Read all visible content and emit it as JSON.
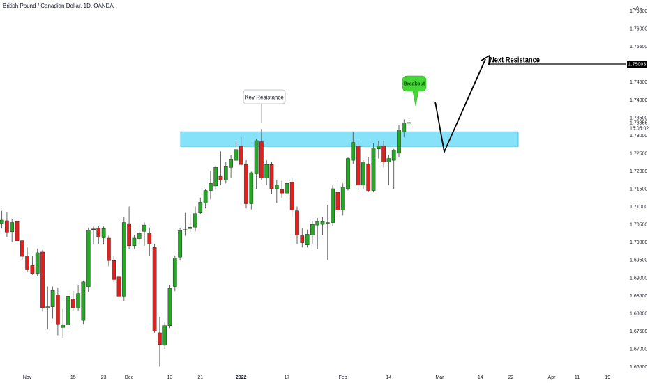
{
  "header": {
    "title": "British Pound / Canadian Dollar, 1D, OANDA"
  },
  "chart_data": {
    "type": "candlestick",
    "currency": "CAD",
    "ylim": [
      1.6625,
      1.77
    ],
    "y_ticks": [
      "1.76500",
      "1.76000",
      "1.75500",
      "1.74500",
      "1.74000",
      "1.73500",
      "1.73000",
      "1.72500",
      "1.72000",
      "1.71500",
      "1.71000",
      "1.70500",
      "1.70000",
      "1.69500",
      "1.69000",
      "1.68500",
      "1.68000",
      "1.67500",
      "1.67000",
      "1.66500"
    ],
    "x_ticks": [
      {
        "label": "Nov",
        "i": 5
      },
      {
        "label": "15",
        "i": 14
      },
      {
        "label": "23",
        "i": 20
      },
      {
        "label": "Dec",
        "i": 25
      },
      {
        "label": "13",
        "i": 33
      },
      {
        "label": "21",
        "i": 39
      },
      {
        "label": "2022",
        "i": 47
      },
      {
        "label": "17",
        "i": 56
      },
      {
        "label": "Feb",
        "i": 67
      },
      {
        "label": "14",
        "i": 76
      },
      {
        "label": "Mar",
        "i": 86
      },
      {
        "label": "14",
        "i": 94
      },
      {
        "label": "22",
        "i": 100
      },
      {
        "label": "Apr",
        "i": 108
      },
      {
        "label": "11",
        "i": 113
      },
      {
        "label": "19",
        "i": 119
      }
    ],
    "x_tick_labels_bold": [
      "2022"
    ],
    "candles": [
      [
        1.7053,
        1.7088,
        1.7038,
        1.7062
      ],
      [
        1.706,
        1.7085,
        1.7015,
        1.7028
      ],
      [
        1.7029,
        1.7065,
        1.7,
        1.7055
      ],
      [
        1.7058,
        1.7066,
        1.6998,
        1.7004
      ],
      [
        1.7004,
        1.7007,
        1.695,
        1.696
      ],
      [
        1.6961,
        1.6985,
        1.6915,
        1.6922
      ],
      [
        1.6934,
        1.696,
        1.6908,
        1.6912
      ],
      [
        1.6912,
        1.6982,
        1.6905,
        1.697
      ],
      [
        1.6972,
        1.6978,
        1.6805,
        1.6815
      ],
      [
        1.6815,
        1.6875,
        1.6755,
        1.6818
      ],
      [
        1.6818,
        1.6875,
        1.6785,
        1.6864
      ],
      [
        1.6852,
        1.6872,
        1.6738,
        1.677
      ],
      [
        1.676,
        1.6812,
        1.673,
        1.6768
      ],
      [
        1.6768,
        1.686,
        1.675,
        1.6848
      ],
      [
        1.684,
        1.6862,
        1.6808,
        1.6815
      ],
      [
        1.6815,
        1.688,
        1.6808,
        1.6855
      ],
      [
        1.678,
        1.6892,
        1.677,
        1.6888
      ],
      [
        1.6875,
        1.704,
        1.686,
        1.7033
      ],
      [
        1.7037,
        1.7044,
        1.6993,
        1.7036
      ],
      [
        1.704,
        1.7045,
        1.6995,
        1.7014
      ],
      [
        1.7012,
        1.7044,
        1.6993,
        1.7038
      ],
      [
        1.7011,
        1.7018,
        1.6932,
        1.6948
      ],
      [
        1.6948,
        1.696,
        1.6888,
        1.6895
      ],
      [
        1.6902,
        1.6912,
        1.684,
        1.6848
      ],
      [
        1.6848,
        1.707,
        1.6835,
        1.7055
      ],
      [
        1.7052,
        1.71,
        1.698,
        1.699
      ],
      [
        1.699,
        1.702,
        1.6982,
        1.7011
      ],
      [
        1.701,
        1.7035,
        1.6995,
        1.7024
      ],
      [
        1.703,
        1.7055,
        1.699,
        1.7048
      ],
      [
        1.7025,
        1.7041,
        1.696,
        1.6995
      ],
      [
        1.6985,
        1.6995,
        1.6745,
        1.675
      ],
      [
        1.6745,
        1.679,
        1.665,
        1.6712
      ],
      [
        1.671,
        1.6775,
        1.67,
        1.6765
      ],
      [
        1.6765,
        1.688,
        1.6758,
        1.687
      ],
      [
        1.6875,
        1.6962,
        1.6862,
        1.6955
      ],
      [
        1.6958,
        1.704,
        1.6948,
        1.7032
      ],
      [
        1.7033,
        1.7082,
        1.7018,
        1.7035
      ],
      [
        1.7038,
        1.708,
        1.7025,
        1.7042
      ],
      [
        1.7042,
        1.71,
        1.703,
        1.708
      ],
      [
        1.7082,
        1.7125,
        1.7078,
        1.7112
      ],
      [
        1.711,
        1.715,
        1.7095,
        1.7145
      ],
      [
        1.7145,
        1.72,
        1.712,
        1.7165
      ],
      [
        1.7158,
        1.7215,
        1.715,
        1.721
      ],
      [
        1.7185,
        1.7255,
        1.716,
        1.7175
      ],
      [
        1.7175,
        1.7225,
        1.7165,
        1.7212
      ],
      [
        1.721,
        1.7245,
        1.718,
        1.7232
      ],
      [
        1.723,
        1.7285,
        1.7218,
        1.726
      ],
      [
        1.727,
        1.7295,
        1.7215,
        1.7218
      ],
      [
        1.7218,
        1.723,
        1.7095,
        1.7108
      ],
      [
        1.7108,
        1.7198,
        1.7092,
        1.7195
      ],
      [
        1.7192,
        1.729,
        1.715,
        1.7285
      ],
      [
        1.7282,
        1.7318,
        1.7175,
        1.718
      ],
      [
        1.718,
        1.723,
        1.716,
        1.7218
      ],
      [
        1.7218,
        1.7225,
        1.7135,
        1.715
      ],
      [
        1.715,
        1.7175,
        1.711,
        1.716
      ],
      [
        1.7148,
        1.7172,
        1.7125,
        1.7138
      ],
      [
        1.7138,
        1.7172,
        1.7128,
        1.7165
      ],
      [
        1.7168,
        1.718,
        1.707,
        1.709
      ],
      [
        1.7088,
        1.71,
        1.6995,
        1.702
      ],
      [
        1.7018,
        1.7038,
        1.6985,
        1.6998
      ],
      [
        1.6992,
        1.7035,
        1.6985,
        1.7022
      ],
      [
        1.702,
        1.706,
        1.6995,
        1.705
      ],
      [
        1.7048,
        1.7068,
        1.698,
        1.7058
      ],
      [
        1.705,
        1.707,
        1.702,
        1.7058
      ],
      [
        1.7055,
        1.7105,
        1.695,
        1.7055
      ],
      [
        1.7055,
        1.716,
        1.7045,
        1.715
      ],
      [
        1.714,
        1.7175,
        1.7078,
        1.709
      ],
      [
        1.709,
        1.7165,
        1.7075,
        1.7155
      ],
      [
        1.715,
        1.724,
        1.7145,
        1.7235
      ],
      [
        1.723,
        1.731,
        1.722,
        1.728
      ],
      [
        1.727,
        1.728,
        1.714,
        1.716
      ],
      [
        1.716,
        1.723,
        1.7148,
        1.7225
      ],
      [
        1.722,
        1.724,
        1.714,
        1.7145
      ],
      [
        1.7145,
        1.7278,
        1.714,
        1.7265
      ],
      [
        1.7262,
        1.7285,
        1.7235,
        1.727
      ],
      [
        1.727,
        1.7285,
        1.721,
        1.7225
      ],
      [
        1.7225,
        1.7245,
        1.716,
        1.7235
      ],
      [
        1.723,
        1.7262,
        1.715,
        1.7258
      ],
      [
        1.725,
        1.733,
        1.724,
        1.7315
      ],
      [
        1.731,
        1.7345,
        1.7295,
        1.7335
      ],
      [
        1.7334,
        1.734,
        1.7328,
        1.7336
      ]
    ],
    "zone": {
      "low": 1.7269,
      "high": 1.731,
      "label": ""
    },
    "price_line": {
      "value": 1.75003,
      "label": "1.75003"
    },
    "last_price_label": "1.73356",
    "countdown_label": "15:05:02",
    "annotations": {
      "key_resistance": "Key Resistance",
      "breakout": "Breakout",
      "next_resistance": "Next Resistance"
    },
    "colors": {
      "up": "#26a826",
      "down": "#e0221f",
      "zone_fill": "#5ed8f5",
      "zone_stroke": "#26b6e0",
      "breakout": "#46d637",
      "text": "#131722",
      "price_tag_bg": "#000000",
      "price_tag_text": "#ffffff"
    }
  }
}
